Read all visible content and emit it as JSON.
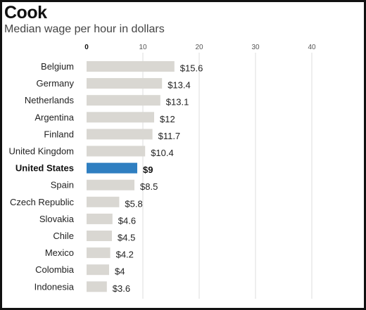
{
  "chart_data": {
    "type": "bar",
    "orientation": "horizontal",
    "title": "Cook",
    "subtitle": "Median wage per hour in dollars",
    "xlim": [
      0,
      40
    ],
    "x_ticks": [
      0,
      10,
      20,
      30,
      40
    ],
    "grid": true,
    "categories": [
      "Belgium",
      "Germany",
      "Netherlands",
      "Argentina",
      "Finland",
      "United Kingdom",
      "United States",
      "Spain",
      "Czech Republic",
      "Slovakia",
      "Chile",
      "Mexico",
      "Colombia",
      "Indonesia"
    ],
    "values": [
      15.6,
      13.4,
      13.1,
      12,
      11.7,
      10.4,
      9,
      8.5,
      5.8,
      4.6,
      4.5,
      4.2,
      4,
      3.6
    ],
    "value_labels": [
      "$15.6",
      "$13.4",
      "$13.1",
      "$12",
      "$11.7",
      "$10.4",
      "$9",
      "$8.5",
      "$5.8",
      "$4.6",
      "$4.5",
      "$4.2",
      "$4",
      "$3.6"
    ],
    "highlight": "United States",
    "colors": {
      "bar": "#d9d7d2",
      "highlight": "#2f7fc1",
      "grid": "#dddddd"
    }
  }
}
